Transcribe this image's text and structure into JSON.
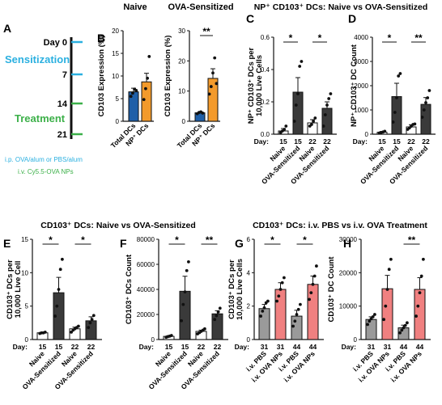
{
  "panel_letters": [
    "A",
    "B",
    "C",
    "D",
    "E",
    "F",
    "G",
    "H"
  ],
  "headers": {
    "naive": "Naive",
    "ova_sensitized": "OVA-Sensitized",
    "c_title": "NP⁺ CD103⁺ DCs: Naive vs OVA-Sensitized",
    "e_title": "CD103⁺ DCs: Naive vs OVA-Sensitized",
    "g_title": "CD103⁺ DCs: i.v. PBS vs i.v. OVA Treatment"
  },
  "timeline": {
    "days": [
      {
        "label": "Day 0",
        "day": 0,
        "color": "#2bb0e0"
      },
      {
        "label": "7",
        "day": 7,
        "color": "#2bb0e0"
      },
      {
        "label": "14",
        "day": 14,
        "color": "#3cb049"
      },
      {
        "label": "21",
        "day": 21,
        "color": "#3cb049"
      }
    ],
    "phase_sensitization": "Sensitization",
    "phase_treatment": "Treatment",
    "legend_ip": "i.p. OVA/alum or PBS/alum",
    "legend_iv": "i.v. Cy5.5-OVA NPs",
    "colors": {
      "sensitization": "#2bb0e0",
      "treatment": "#3cb049"
    }
  },
  "colors": {
    "naive_blue": "#1f5fa8",
    "sens_orange": "#f39a2b",
    "naive_white": "#ffffff",
    "sens_dark": "#3a3a3a",
    "pbs_gray": "#9a9a9a",
    "ova_salmon": "#f08080"
  },
  "chart_data": [
    {
      "id": "B1",
      "type": "bar",
      "ylabel": "CD103 Expression (%)",
      "ylim": [
        0,
        20
      ],
      "yticks": [
        0,
        5,
        10,
        15,
        20
      ],
      "categories": [
        "Total DCs",
        "NP⁺ DCs"
      ],
      "values": [
        6.5,
        8.7
      ],
      "errors": [
        0.8,
        1.9
      ],
      "colors": [
        "#1f5fa8",
        "#f39a2b"
      ],
      "points": [
        [
          5.5,
          6.2,
          7.1,
          6.8
        ],
        [
          4.8,
          7.2,
          9.5,
          14.3
        ]
      ],
      "sig": ""
    },
    {
      "id": "B2",
      "type": "bar",
      "ylabel": "CD103 Expression (%)",
      "ylim": [
        0,
        30
      ],
      "yticks": [
        0,
        10,
        20,
        30
      ],
      "categories": [
        "Total DCs",
        "NP⁺ DCs"
      ],
      "values": [
        2.8,
        14.2
      ],
      "errors": [
        0.3,
        3.2
      ],
      "colors": [
        "#1f5fa8",
        "#f39a2b"
      ],
      "points": [
        [
          2.5,
          2.9,
          3.1,
          2.7
        ],
        [
          9.0,
          11.5,
          16.0,
          21.0,
          12.5
        ]
      ],
      "sig": "**"
    },
    {
      "id": "C",
      "type": "bar",
      "ylabel": "NP⁺ CD103⁺ DCs per 10,000 Live Cells",
      "ylim": [
        0,
        0.6
      ],
      "yticks": [
        0.0,
        0.2,
        0.4,
        0.6
      ],
      "day_label": "Day:",
      "days": [
        "15",
        "15",
        "22",
        "22"
      ],
      "categories": [
        "Naive",
        "OVA-Sensitized",
        "Naive",
        "OVA-Sensitized"
      ],
      "values": [
        0.02,
        0.26,
        0.07,
        0.16
      ],
      "errors": [
        0.015,
        0.09,
        0.02,
        0.04
      ],
      "colors": [
        "#ffffff",
        "#3a3a3a",
        "#ffffff",
        "#3a3a3a"
      ],
      "points": [
        [
          0.01,
          0.02,
          0.03,
          0.05
        ],
        [
          0.08,
          0.18,
          0.25,
          0.42,
          0.45
        ],
        [
          0.05,
          0.06,
          0.08,
          0.1
        ],
        [
          0.05,
          0.12,
          0.18,
          0.22,
          0.25
        ]
      ],
      "sig": [
        {
          "from": 0,
          "to": 1,
          "label": "*"
        },
        {
          "from": 2,
          "to": 3,
          "label": "*"
        }
      ]
    },
    {
      "id": "D",
      "type": "bar",
      "ylabel": "NP⁺ CD103⁺ DC Count",
      "ylim": [
        0,
        4000
      ],
      "yticks": [
        0,
        1000,
        2000,
        3000,
        4000
      ],
      "day_label": "Day:",
      "days": [
        "15",
        "15",
        "22",
        "22"
      ],
      "categories": [
        "Naive",
        "OVA-Sensitized",
        "Naive",
        "OVA-Sensitized"
      ],
      "values": [
        80,
        1550,
        300,
        1230
      ],
      "errors": [
        30,
        550,
        90,
        280
      ],
      "colors": [
        "#ffffff",
        "#3a3a3a",
        "#ffffff",
        "#3a3a3a"
      ],
      "points": [
        [
          50,
          70,
          90,
          120
        ],
        [
          500,
          900,
          1500,
          2400,
          2500
        ],
        [
          200,
          260,
          330,
          400,
          420
        ],
        [
          700,
          1000,
          1300,
          1500,
          1800
        ]
      ],
      "sig": [
        {
          "from": 0,
          "to": 1,
          "label": "*"
        },
        {
          "from": 2,
          "to": 3,
          "label": "**"
        }
      ]
    },
    {
      "id": "E",
      "type": "bar",
      "ylabel": "CD103⁺ DCs per 10,000 Live Cell",
      "ylim": [
        0,
        15
      ],
      "yticks": [
        0,
        5,
        10,
        15
      ],
      "day_label": "Day:",
      "days": [
        "15",
        "15",
        "22",
        "22"
      ],
      "categories": [
        "Naive",
        "OVA-Sensitized",
        "Naive",
        "OVA-Sensitized"
      ],
      "values": [
        1.0,
        7.0,
        1.6,
        2.8
      ],
      "errors": [
        0.1,
        2.3,
        0.25,
        0.6
      ],
      "colors": [
        "#ffffff",
        "#3a3a3a",
        "#ffffff",
        "#3a3a3a"
      ],
      "points": [
        [
          0.9,
          1.0,
          1.0,
          1.1
        ],
        [
          3.5,
          5.0,
          7.5,
          10.5,
          12.0
        ],
        [
          1.1,
          1.4,
          1.6,
          1.8,
          2.0
        ],
        [
          1.8,
          2.5,
          3.0,
          3.6
        ]
      ],
      "sig": [
        {
          "from": 0,
          "to": 1,
          "label": "*"
        },
        {
          "from": 2,
          "to": 3,
          "label": "*"
        }
      ]
    },
    {
      "id": "F",
      "type": "bar",
      "ylabel": "CD103⁺ DCs Count",
      "ylim": [
        0,
        80000
      ],
      "yticks": [
        0,
        20000,
        40000,
        60000,
        80000
      ],
      "day_label": "Day:",
      "days": [
        "15",
        "15",
        "22",
        "22"
      ],
      "categories": [
        "Naive",
        "OVA-Sensitized",
        "Naive",
        "OVA-Sensitized"
      ],
      "values": [
        2500,
        38500,
        6500,
        20500
      ],
      "errors": [
        500,
        12000,
        1000,
        2500
      ],
      "colors": [
        "#ffffff",
        "#3a3a3a",
        "#ffffff",
        "#3a3a3a"
      ],
      "points": [
        [
          1800,
          2300,
          2700,
          3200
        ],
        [
          15000,
          28000,
          38000,
          55000,
          62000
        ],
        [
          4500,
          5500,
          6500,
          7500,
          8500
        ],
        [
          16000,
          19000,
          22000,
          25000
        ]
      ],
      "sig": [
        {
          "from": 0,
          "to": 1,
          "label": "*"
        },
        {
          "from": 2,
          "to": 3,
          "label": "**"
        }
      ]
    },
    {
      "id": "G",
      "type": "bar",
      "ylabel": "CD103⁺ DCs per 10,000 Live Cells",
      "ylim": [
        0,
        6
      ],
      "yticks": [
        0,
        2,
        4,
        6
      ],
      "day_label": "Day:",
      "days": [
        "31",
        "31",
        "44",
        "44"
      ],
      "categories": [
        "i.v. PBS",
        "i.v. OVA NPs",
        "i.v. PBS",
        "i.v. OVA NPs"
      ],
      "values": [
        1.85,
        3.0,
        1.4,
        3.3
      ],
      "errors": [
        0.25,
        0.4,
        0.35,
        0.5
      ],
      "colors": [
        "#9a9a9a",
        "#f08080",
        "#9a9a9a",
        "#f08080"
      ],
      "points": [
        [
          1.4,
          1.7,
          1.9,
          2.2,
          2.3
        ],
        [
          2.3,
          2.6,
          3.0,
          3.4,
          3.7
        ],
        [
          0.8,
          1.1,
          1.5,
          1.8,
          2.1
        ],
        [
          2.4,
          2.8,
          3.3,
          3.8,
          4.4
        ]
      ],
      "sig": [
        {
          "from": 0,
          "to": 1,
          "label": "*"
        },
        {
          "from": 2,
          "to": 3,
          "label": "*"
        }
      ]
    },
    {
      "id": "H",
      "type": "bar",
      "ylabel": "CD103⁺ DC Count",
      "ylim": [
        0,
        30000
      ],
      "yticks": [
        0,
        10000,
        20000,
        30000
      ],
      "day_label": "Day:",
      "days": [
        "31",
        "31",
        "44",
        "44"
      ],
      "categories": [
        "i.v. PBS",
        "i.v. OVA NPs",
        "i.v. PBS",
        "i.v. OVA NPs"
      ],
      "values": [
        6000,
        15200,
        3500,
        15000
      ],
      "errors": [
        800,
        4000,
        800,
        3500
      ],
      "colors": [
        "#9a9a9a",
        "#f08080",
        "#9a9a9a",
        "#f08080"
      ],
      "points": [
        [
          4500,
          5500,
          6200,
          6800,
          7500
        ],
        [
          6000,
          10000,
          15000,
          21000,
          24000
        ],
        [
          2000,
          2800,
          3500,
          4200,
          5000
        ],
        [
          7000,
          10000,
          14000,
          19000,
          24000
        ]
      ],
      "sig": [
        {
          "from": 2,
          "to": 3,
          "label": "**"
        }
      ]
    }
  ]
}
